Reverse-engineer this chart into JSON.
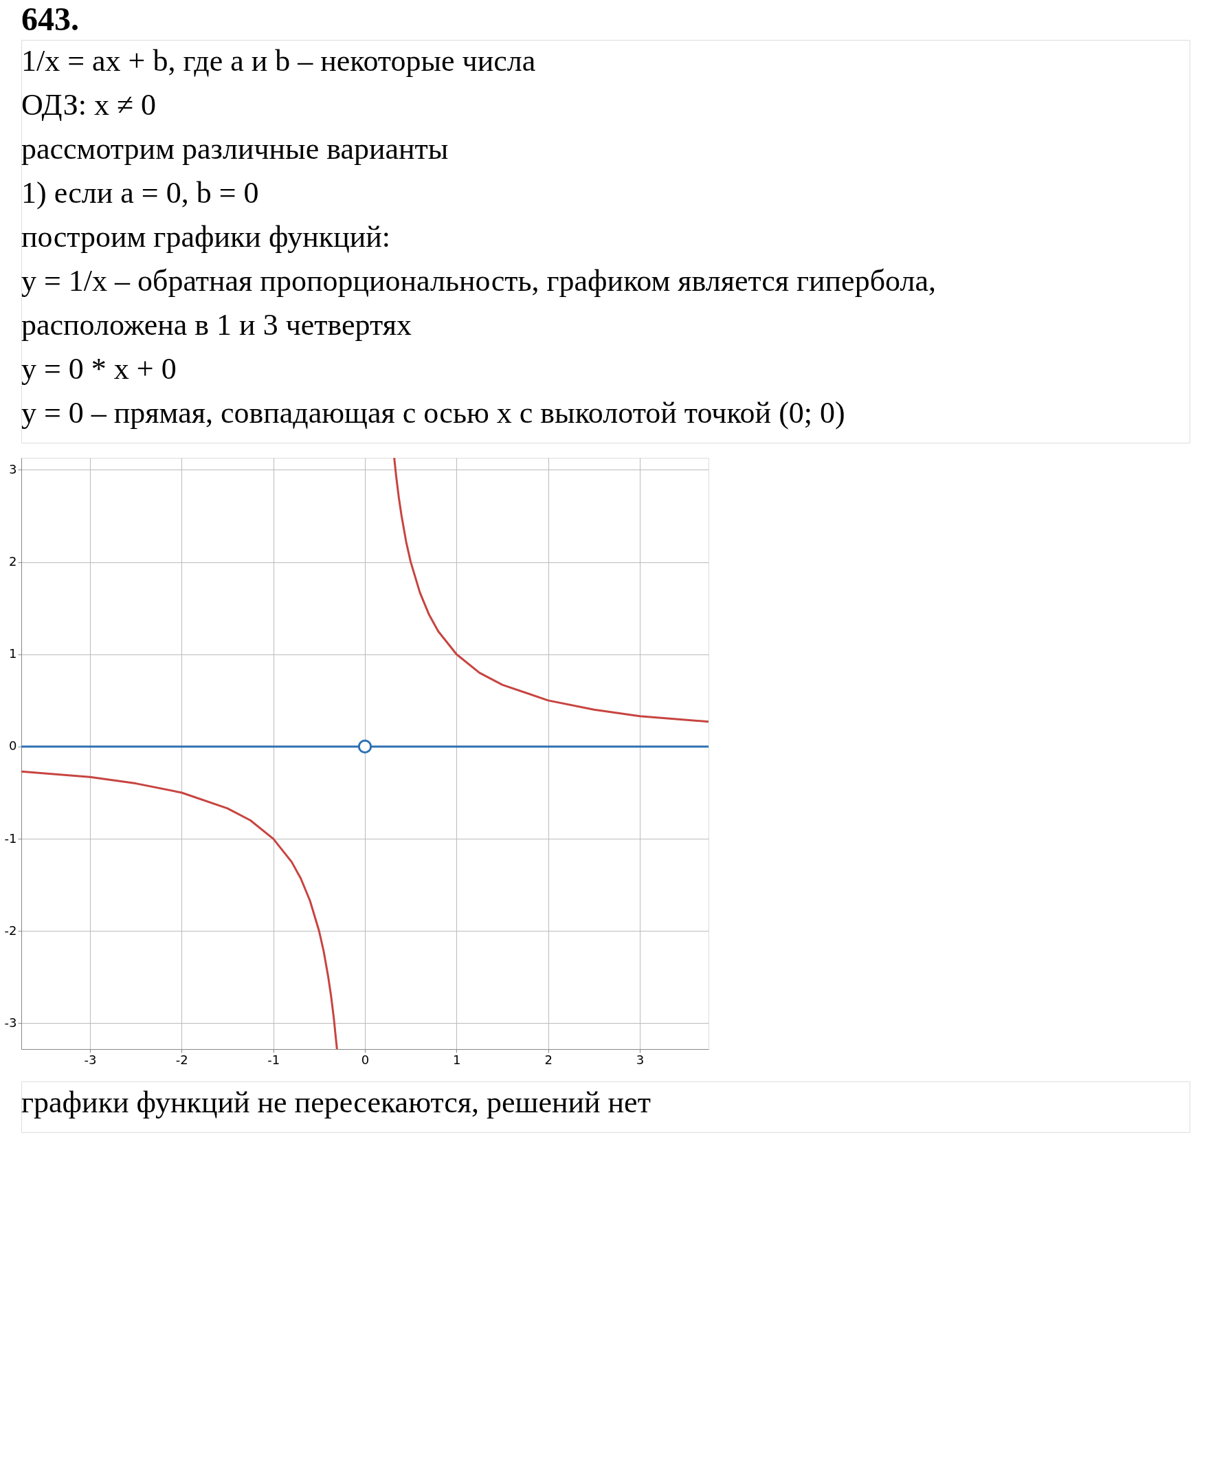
{
  "chart_data": {
    "type": "line",
    "title": "643.",
    "annotations": [
      "1/x = ax + b, где a и b – некоторые числа",
      "ОДЗ: x ≠ 0",
      "рассмотрим различные варианты",
      "1) если a = 0, b = 0",
      "построим графики функций:",
      "y = 1/x – обратная пропорциональность, графиком является гипербола,",
      "расположена в 1 и 3 четвертях",
      "y = 0 * x + 0",
      "y = 0 – прямая, совпадающая с осью x с выколотой точкой (0; 0)",
      "графики функций не пересекаются, решений нет"
    ],
    "series": [
      {
        "color": "#c74440",
        "x": [
          0.32,
          0.34,
          0.37,
          0.4,
          0.45,
          0.5,
          0.6,
          0.7,
          0.8,
          1,
          1.25,
          1.5,
          2,
          2.5,
          3,
          3.75
        ],
        "values": [
          3.13,
          2.94,
          2.7,
          2.5,
          2.22,
          2,
          1.67,
          1.43,
          1.25,
          1,
          0.8,
          0.67,
          0.5,
          0.4,
          0.33,
          0.27
        ]
      },
      {
        "color": "#c74440",
        "x": [
          -3.75,
          -3,
          -2.5,
          -2,
          -1.5,
          -1.25,
          -1,
          -0.8,
          -0.7,
          -0.6,
          -0.5,
          -0.45,
          -0.4,
          -0.37,
          -0.34,
          -0.305
        ],
        "values": [
          -0.27,
          -0.33,
          -0.4,
          -0.5,
          -0.67,
          -0.8,
          -1,
          -1.25,
          -1.43,
          -1.67,
          -2,
          -2.22,
          -2.5,
          -2.7,
          -2.94,
          -3.28
        ]
      },
      {
        "color": "#2d70b3",
        "x": [
          -3.75,
          3.75
        ],
        "values": [
          0,
          0
        ]
      },
      {
        "type": "scatter",
        "color": "#2d70b3",
        "marker": "circle",
        "x": [
          0
        ],
        "values": [
          0
        ]
      }
    ],
    "xlim": [
      -3.75,
      3.75
    ],
    "ylim": [
      -3.28,
      3.13
    ],
    "xticks": [
      -3,
      -2,
      -1,
      0,
      1,
      2,
      3
    ],
    "yticks": [
      -3,
      -2,
      -1,
      0,
      1,
      2,
      3
    ],
    "grid": true,
    "line_style": "solid"
  }
}
